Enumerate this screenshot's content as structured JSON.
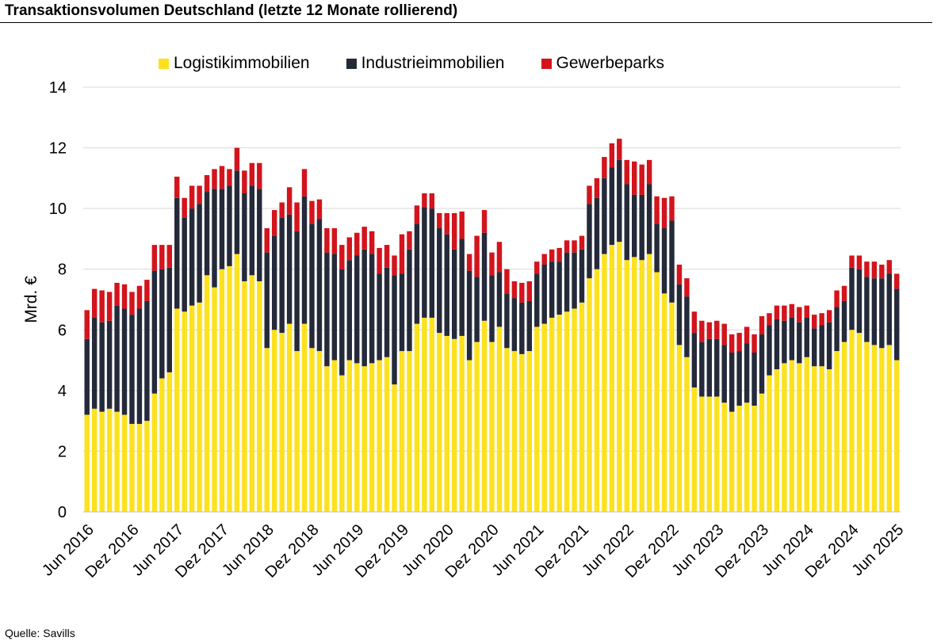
{
  "title": "Transaktionsvolumen Deutschland (letzte 12 Monate rollierend)",
  "source": "Quelle: Savills",
  "chart_data": {
    "type": "bar",
    "stacked": true,
    "title": "Transaktionsvolumen Deutschland (letzte 12 Monate rollierend)",
    "ylabel": "Mrd. €",
    "xlabel": "",
    "ylim": [
      0,
      14
    ],
    "yticks": [
      0,
      2,
      4,
      6,
      8,
      10,
      12,
      14
    ],
    "grid": "horizontal",
    "legend_position": "top",
    "start_month": "Jun 2016",
    "end_month": "Jun 2025",
    "xtick_labels": [
      "Jun 2016",
      "Dez 2016",
      "Jun 2017",
      "Dez 2017",
      "Jun 2018",
      "Dez 2018",
      "Jun 2019",
      "Dez 2019",
      "Jun 2020",
      "Dez 2020",
      "Jun 2021",
      "Dez 2021",
      "Jun 2022",
      "Dez 2022",
      "Jun 2023",
      "Dez 2023",
      "Jun 2024",
      "Dez 2024",
      "Jun 2025"
    ],
    "series": [
      {
        "name": "Logistikimmobilien",
        "color": "#fde11e",
        "values": [
          3.2,
          3.4,
          3.3,
          3.4,
          3.3,
          3.2,
          2.9,
          2.9,
          3.0,
          3.9,
          4.4,
          4.6,
          6.7,
          6.6,
          6.8,
          6.9,
          7.8,
          7.4,
          8.0,
          8.1,
          8.5,
          7.6,
          7.8,
          7.6,
          5.4,
          6.0,
          5.9,
          6.2,
          5.3,
          6.2,
          5.4,
          5.3,
          4.8,
          5.0,
          4.5,
          5.0,
          4.9,
          4.8,
          4.9,
          5.0,
          5.1,
          4.2,
          5.3,
          5.3,
          6.2,
          6.4,
          6.4,
          5.9,
          5.8,
          5.7,
          5.8,
          5.0,
          5.6,
          6.3,
          5.6,
          6.1,
          5.4,
          5.3,
          5.2,
          5.3,
          6.1,
          6.2,
          6.4,
          6.5,
          6.6,
          6.7,
          6.9,
          7.7,
          8.0,
          8.5,
          8.8,
          8.9,
          8.3,
          8.4,
          8.3,
          8.5,
          7.9,
          7.2,
          6.9,
          5.5,
          5.1,
          4.1,
          3.8,
          3.8,
          3.8,
          3.6,
          3.3,
          3.5,
          3.6,
          3.5,
          3.9,
          4.5,
          4.7,
          4.9,
          5.0,
          4.9,
          5.1,
          4.8,
          4.8,
          4.7,
          5.3,
          5.6,
          6.0,
          5.9,
          5.6,
          5.5,
          5.4,
          5.5,
          5.0
        ]
      },
      {
        "name": "Industrieimmobilien",
        "color": "#252a3a",
        "values": [
          2.5,
          3.0,
          2.95,
          2.9,
          3.5,
          3.5,
          3.6,
          3.8,
          3.95,
          4.05,
          3.6,
          3.45,
          3.65,
          3.1,
          3.2,
          3.25,
          2.75,
          3.25,
          2.65,
          2.65,
          2.75,
          2.9,
          2.95,
          3.05,
          3.15,
          3.1,
          3.8,
          3.6,
          3.95,
          4.2,
          4.1,
          4.35,
          3.75,
          3.5,
          3.5,
          3.3,
          3.55,
          3.85,
          3.6,
          2.85,
          2.95,
          3.6,
          2.55,
          3.35,
          3.3,
          3.65,
          3.6,
          3.45,
          3.35,
          2.95,
          3.2,
          2.95,
          2.15,
          2.9,
          2.2,
          1.8,
          1.8,
          1.75,
          1.7,
          1.65,
          1.75,
          1.95,
          1.85,
          1.75,
          1.95,
          1.85,
          1.75,
          2.45,
          2.35,
          2.5,
          2.55,
          2.7,
          2.5,
          2.05,
          2.15,
          2.3,
          1.6,
          2.15,
          2.7,
          2.0,
          2.0,
          1.8,
          1.8,
          1.9,
          1.9,
          1.9,
          1.95,
          1.8,
          1.95,
          1.75,
          1.95,
          1.65,
          1.65,
          1.4,
          1.4,
          1.35,
          1.3,
          1.25,
          1.35,
          1.55,
          1.45,
          1.35,
          2.05,
          2.1,
          2.15,
          2.2,
          2.3,
          2.35,
          2.35
        ]
      },
      {
        "name": "Gewerbeparks",
        "color": "#d3141c",
        "values": [
          0.95,
          0.95,
          1.05,
          0.95,
          0.75,
          0.8,
          0.75,
          0.75,
          0.7,
          0.85,
          0.8,
          0.75,
          0.7,
          0.65,
          0.75,
          0.6,
          0.55,
          0.65,
          0.75,
          0.55,
          0.75,
          0.75,
          0.75,
          0.85,
          0.8,
          0.85,
          0.5,
          0.9,
          0.95,
          0.9,
          0.75,
          0.65,
          0.8,
          0.85,
          0.8,
          0.75,
          0.75,
          0.75,
          0.75,
          0.85,
          0.75,
          0.65,
          1.3,
          0.6,
          0.6,
          0.45,
          0.5,
          0.5,
          0.7,
          1.2,
          0.9,
          0.55,
          1.35,
          0.75,
          0.75,
          1.0,
          0.8,
          0.55,
          0.65,
          0.65,
          0.4,
          0.35,
          0.4,
          0.45,
          0.4,
          0.4,
          0.45,
          0.6,
          0.65,
          0.7,
          0.8,
          0.7,
          0.8,
          1.1,
          1.0,
          0.8,
          0.9,
          1.0,
          0.8,
          0.65,
          0.6,
          0.7,
          0.7,
          0.55,
          0.6,
          0.7,
          0.6,
          0.6,
          0.55,
          0.6,
          0.6,
          0.4,
          0.45,
          0.5,
          0.45,
          0.5,
          0.4,
          0.45,
          0.4,
          0.4,
          0.55,
          0.5,
          0.4,
          0.45,
          0.5,
          0.55,
          0.45,
          0.45,
          0.5
        ]
      }
    ]
  }
}
